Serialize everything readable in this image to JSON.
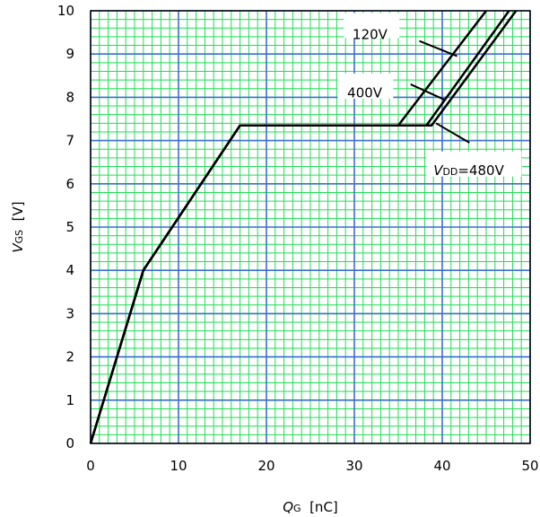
{
  "chart_data": {
    "type": "line",
    "title": "",
    "xlabel": {
      "italic": "Q",
      "sub": "G",
      "rest": "  [nC]"
    },
    "ylabel": {
      "italic": "V",
      "sub": "GS",
      "rest": "  [V]"
    },
    "xlim": [
      0,
      50
    ],
    "ylim": [
      0,
      10
    ],
    "x_ticks": [
      "0",
      "10",
      "20",
      "30",
      "40",
      "50"
    ],
    "y_ticks": [
      "0",
      "1",
      "2",
      "3",
      "4",
      "5",
      "6",
      "7",
      "8",
      "9",
      "10"
    ],
    "grid": true,
    "grid_colors": {
      "minor": "#22dd55",
      "major": "#3a6fd0",
      "frame": "#000000"
    },
    "series": [
      {
        "name": "120V",
        "points": [
          [
            0,
            0
          ],
          [
            6,
            4
          ],
          [
            17,
            7.35
          ],
          [
            35,
            7.35
          ],
          [
            45,
            10
          ]
        ]
      },
      {
        "name": "400V",
        "points": [
          [
            0,
            0
          ],
          [
            6,
            4
          ],
          [
            17,
            7.35
          ],
          [
            38.2,
            7.35
          ],
          [
            47.6,
            10
          ]
        ]
      },
      {
        "name": "V_DD=480V",
        "points": [
          [
            0,
            0
          ],
          [
            6,
            4
          ],
          [
            17,
            7.35
          ],
          [
            38.8,
            7.35
          ],
          [
            48.4,
            10
          ]
        ]
      }
    ],
    "annotations": {
      "label_120": "120V",
      "label_400": "400V",
      "label_480_italic": "V",
      "label_480_sub": "DD",
      "label_480_rest": "=480V"
    }
  }
}
